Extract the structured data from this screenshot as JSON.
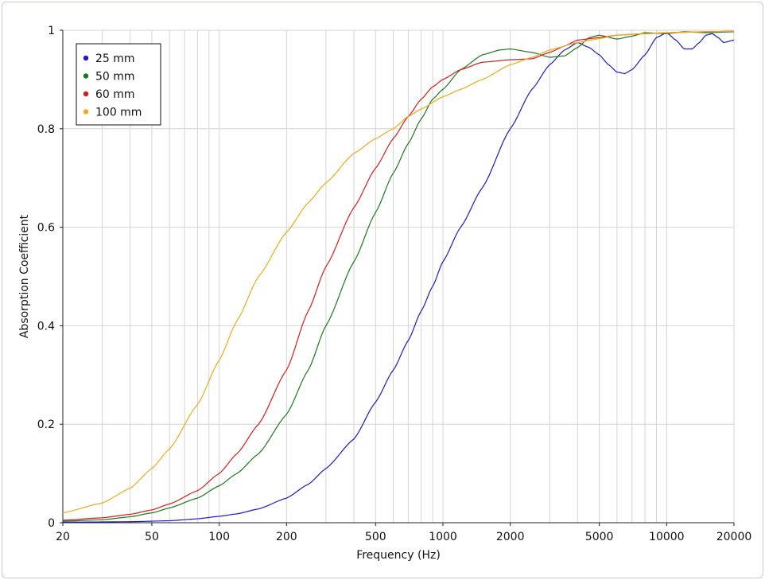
{
  "chart_data": {
    "type": "line",
    "title": "",
    "xlabel": "Frequency (Hz)",
    "ylabel": "Absorption Coefficient",
    "xscale": "log",
    "xlim": [
      20,
      20000
    ],
    "ylim": [
      0,
      1
    ],
    "grid": true,
    "legend_position": "top-left",
    "x_ticks": [
      20,
      50,
      100,
      200,
      500,
      1000,
      2000,
      5000,
      10000,
      20000
    ],
    "x_tick_labels": [
      "20",
      "50",
      "100",
      "200",
      "500",
      "1000",
      "2000",
      "5000",
      "10000",
      "20000"
    ],
    "y_ticks": [
      0,
      0.2,
      0.4,
      0.6,
      0.8,
      1
    ],
    "y_tick_labels": [
      "0",
      "0.2",
      "0.4",
      "0.6",
      "0.8",
      "1"
    ],
    "series": [
      {
        "name": "25 mm",
        "color": "#1a1acc",
        "points": [
          [
            20,
            0.001
          ],
          [
            40,
            0.002
          ],
          [
            60,
            0.004
          ],
          [
            80,
            0.008
          ],
          [
            100,
            0.013
          ],
          [
            120,
            0.018
          ],
          [
            150,
            0.028
          ],
          [
            200,
            0.05
          ],
          [
            250,
            0.078
          ],
          [
            300,
            0.11
          ],
          [
            400,
            0.17
          ],
          [
            500,
            0.245
          ],
          [
            600,
            0.31
          ],
          [
            700,
            0.37
          ],
          [
            800,
            0.43
          ],
          [
            900,
            0.48
          ],
          [
            1000,
            0.53
          ],
          [
            1200,
            0.6
          ],
          [
            1500,
            0.68
          ],
          [
            2000,
            0.8
          ],
          [
            2500,
            0.88
          ],
          [
            3000,
            0.93
          ],
          [
            3500,
            0.96
          ],
          [
            4000,
            0.975
          ],
          [
            4500,
            0.965
          ],
          [
            5000,
            0.95
          ],
          [
            5500,
            0.93
          ],
          [
            6000,
            0.915
          ],
          [
            6500,
            0.912
          ],
          [
            7000,
            0.92
          ],
          [
            8000,
            0.95
          ],
          [
            9000,
            0.985
          ],
          [
            10000,
            0.995
          ],
          [
            11000,
            0.98
          ],
          [
            12000,
            0.962
          ],
          [
            13000,
            0.962
          ],
          [
            14000,
            0.975
          ],
          [
            15000,
            0.99
          ],
          [
            16000,
            0.993
          ],
          [
            17000,
            0.985
          ],
          [
            18000,
            0.975
          ],
          [
            20000,
            0.98
          ]
        ]
      },
      {
        "name": "50 mm",
        "color": "#1a7a1a",
        "points": [
          [
            20,
            0.003
          ],
          [
            30,
            0.006
          ],
          [
            40,
            0.012
          ],
          [
            50,
            0.02
          ],
          [
            60,
            0.03
          ],
          [
            80,
            0.05
          ],
          [
            100,
            0.075
          ],
          [
            120,
            0.1
          ],
          [
            150,
            0.14
          ],
          [
            200,
            0.22
          ],
          [
            250,
            0.31
          ],
          [
            300,
            0.4
          ],
          [
            400,
            0.53
          ],
          [
            500,
            0.63
          ],
          [
            600,
            0.71
          ],
          [
            700,
            0.77
          ],
          [
            800,
            0.82
          ],
          [
            900,
            0.86
          ],
          [
            1000,
            0.88
          ],
          [
            1200,
            0.92
          ],
          [
            1500,
            0.95
          ],
          [
            1800,
            0.96
          ],
          [
            2000,
            0.962
          ],
          [
            2500,
            0.955
          ],
          [
            3000,
            0.945
          ],
          [
            3500,
            0.948
          ],
          [
            4000,
            0.965
          ],
          [
            4500,
            0.985
          ],
          [
            5000,
            0.99
          ],
          [
            6000,
            0.982
          ],
          [
            7000,
            0.988
          ],
          [
            8000,
            0.995
          ],
          [
            10000,
            0.993
          ],
          [
            12000,
            0.997
          ],
          [
            15000,
            0.995
          ],
          [
            20000,
            0.997
          ]
        ]
      },
      {
        "name": "60 mm",
        "color": "#dd1a1a",
        "points": [
          [
            20,
            0.005
          ],
          [
            30,
            0.01
          ],
          [
            40,
            0.017
          ],
          [
            50,
            0.026
          ],
          [
            60,
            0.038
          ],
          [
            80,
            0.065
          ],
          [
            100,
            0.1
          ],
          [
            120,
            0.14
          ],
          [
            150,
            0.2
          ],
          [
            200,
            0.31
          ],
          [
            250,
            0.43
          ],
          [
            300,
            0.52
          ],
          [
            400,
            0.64
          ],
          [
            500,
            0.72
          ],
          [
            600,
            0.78
          ],
          [
            700,
            0.825
          ],
          [
            800,
            0.86
          ],
          [
            900,
            0.885
          ],
          [
            1000,
            0.9
          ],
          [
            1200,
            0.92
          ],
          [
            1500,
            0.935
          ],
          [
            2000,
            0.94
          ],
          [
            2500,
            0.942
          ],
          [
            3000,
            0.955
          ],
          [
            3500,
            0.968
          ],
          [
            4000,
            0.98
          ],
          [
            5000,
            0.985
          ],
          [
            6000,
            0.99
          ],
          [
            8000,
            0.993
          ],
          [
            10000,
            0.995
          ],
          [
            15000,
            0.997
          ],
          [
            20000,
            0.998
          ]
        ]
      },
      {
        "name": "100 mm",
        "color": "#f0aa1a",
        "points": [
          [
            20,
            0.02
          ],
          [
            30,
            0.04
          ],
          [
            40,
            0.07
          ],
          [
            50,
            0.11
          ],
          [
            60,
            0.15
          ],
          [
            80,
            0.24
          ],
          [
            100,
            0.33
          ],
          [
            120,
            0.41
          ],
          [
            150,
            0.5
          ],
          [
            200,
            0.59
          ],
          [
            250,
            0.65
          ],
          [
            300,
            0.69
          ],
          [
            400,
            0.75
          ],
          [
            500,
            0.78
          ],
          [
            600,
            0.8
          ],
          [
            700,
            0.825
          ],
          [
            800,
            0.84
          ],
          [
            1000,
            0.865
          ],
          [
            1200,
            0.88
          ],
          [
            1500,
            0.9
          ],
          [
            2000,
            0.93
          ],
          [
            2500,
            0.945
          ],
          [
            3000,
            0.96
          ],
          [
            4000,
            0.975
          ],
          [
            5000,
            0.983
          ],
          [
            6000,
            0.99
          ],
          [
            8000,
            0.993
          ],
          [
            10000,
            0.995
          ],
          [
            15000,
            0.997
          ],
          [
            20000,
            0.998
          ]
        ]
      }
    ]
  }
}
